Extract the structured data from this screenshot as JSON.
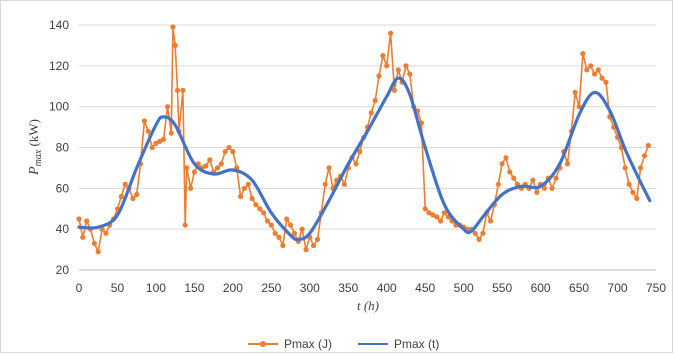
{
  "chart_data": {
    "type": "line",
    "xlabel": "t (h)",
    "ylabel_main": "P",
    "ylabel_sub": "max",
    "ylabel_unit": " (kW)",
    "xlim": [
      0,
      750
    ],
    "ylim": [
      20,
      140
    ],
    "x_ticks": [
      0,
      50,
      100,
      150,
      200,
      250,
      300,
      350,
      400,
      450,
      500,
      550,
      600,
      650,
      700,
      750
    ],
    "y_ticks": [
      20,
      40,
      60,
      80,
      100,
      120,
      140
    ],
    "grid": "horizontal",
    "legend_position": "bottom",
    "series": [
      {
        "name": "Pmax (J)",
        "color": "#ED7D31",
        "marker": "circle",
        "x": [
          0,
          5,
          10,
          15,
          20,
          25,
          30,
          35,
          40,
          45,
          50,
          55,
          60,
          65,
          70,
          75,
          80,
          85,
          90,
          95,
          100,
          105,
          110,
          115,
          120,
          122,
          125,
          128,
          130,
          135,
          138,
          140,
          145,
          150,
          155,
          160,
          165,
          170,
          175,
          180,
          185,
          190,
          195,
          200,
          205,
          210,
          215,
          220,
          225,
          230,
          235,
          240,
          245,
          250,
          255,
          260,
          265,
          270,
          275,
          280,
          285,
          290,
          295,
          300,
          305,
          310,
          315,
          320,
          325,
          330,
          335,
          340,
          345,
          350,
          355,
          360,
          365,
          370,
          375,
          380,
          385,
          390,
          395,
          400,
          405,
          410,
          415,
          420,
          425,
          430,
          435,
          440,
          445,
          450,
          455,
          460,
          465,
          470,
          475,
          480,
          485,
          490,
          495,
          500,
          505,
          510,
          515,
          520,
          525,
          530,
          535,
          540,
          545,
          550,
          555,
          560,
          565,
          570,
          575,
          580,
          585,
          590,
          595,
          600,
          605,
          610,
          615,
          620,
          625,
          630,
          635,
          640,
          645,
          650,
          655,
          660,
          665,
          670,
          675,
          680,
          685,
          690,
          695,
          700,
          705,
          710,
          715,
          720,
          725,
          730,
          735,
          740
        ],
        "y": [
          45,
          36,
          44,
          40,
          33,
          29,
          40,
          38,
          42,
          45,
          50,
          56,
          62,
          60,
          55,
          57,
          72,
          93,
          88,
          80,
          82,
          83,
          84,
          100,
          87,
          139,
          130,
          108,
          88,
          108,
          42,
          70,
          60,
          68,
          72,
          70,
          71,
          74,
          68,
          70,
          72,
          78,
          80,
          78,
          70,
          56,
          60,
          62,
          55,
          52,
          50,
          48,
          44,
          42,
          38,
          36,
          32,
          45,
          42,
          38,
          34,
          40,
          30,
          36,
          32,
          35,
          48,
          62,
          70,
          60,
          64,
          66,
          62,
          70,
          75,
          72,
          78,
          85,
          90,
          97,
          103,
          115,
          125,
          120,
          136,
          108,
          118,
          112,
          120,
          116,
          100,
          98,
          92,
          50,
          48,
          47,
          46,
          44,
          48,
          46,
          44,
          42,
          42,
          41,
          40,
          40,
          38,
          35,
          38,
          48,
          44,
          52,
          62,
          72,
          75,
          68,
          65,
          62,
          60,
          62,
          60,
          64,
          58,
          62,
          60,
          65,
          60,
          65,
          70,
          78,
          72,
          88,
          107,
          100,
          126,
          118,
          120,
          116,
          118,
          114,
          112,
          95,
          90,
          85,
          80,
          70,
          62,
          58,
          55,
          70,
          76,
          81
        ]
      },
      {
        "name": "Pmax (t)",
        "color": "#4472C4",
        "marker": "none",
        "x": [
          0,
          25,
          50,
          75,
          100,
          110,
          125,
          150,
          175,
          200,
          225,
          250,
          275,
          285,
          300,
          325,
          350,
          375,
          400,
          415,
          430,
          450,
          475,
          500,
          510,
          525,
          550,
          575,
          600,
          625,
          650,
          670,
          690,
          710,
          730,
          742
        ],
        "y": [
          41,
          41,
          47,
          70,
          91,
          95,
          91,
          72,
          67,
          69,
          64,
          48,
          37,
          35,
          38,
          54,
          72,
          88,
          105,
          114,
          106,
          80,
          52,
          40,
          39,
          46,
          57,
          61,
          61,
          72,
          96,
          107,
          98,
          79,
          63,
          54
        ]
      }
    ]
  }
}
